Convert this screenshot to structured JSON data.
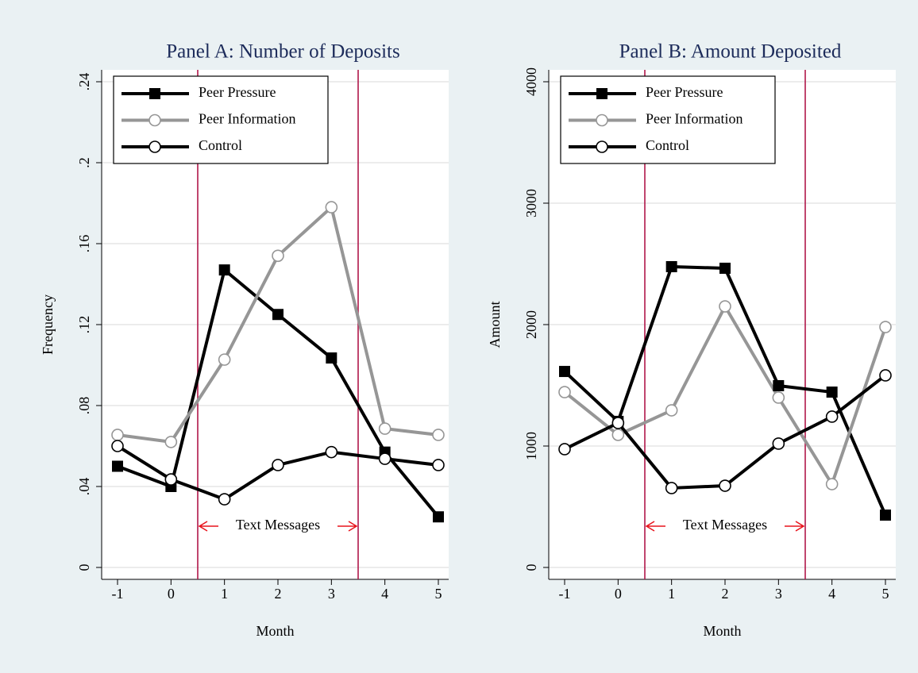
{
  "chart_data": [
    {
      "type": "line",
      "title": "Panel A: Number of Deposits",
      "xlabel": "Month",
      "ylabel": "Frequency",
      "x": [
        -1,
        0,
        1,
        2,
        3,
        4,
        5
      ],
      "series": [
        {
          "name": "Peer Pressure",
          "color": "#000000",
          "marker": "square",
          "values": [
            0.05,
            0.04,
            0.147,
            0.125,
            0.1035,
            0.057,
            0.025
          ]
        },
        {
          "name": "Peer Information",
          "color": "#969696",
          "marker": "circle",
          "values": [
            0.0655,
            0.062,
            0.1027,
            0.154,
            0.178,
            0.0686,
            0.0655
          ]
        },
        {
          "name": "Control",
          "color": "#000000",
          "marker": "circle",
          "values": [
            0.06,
            0.0435,
            0.0337,
            0.0506,
            0.057,
            0.0537,
            0.0506
          ]
        }
      ],
      "xlim": [
        -1,
        5
      ],
      "xticks": [
        -1,
        0,
        1,
        2,
        3,
        4,
        5
      ],
      "ylim": [
        0,
        0.24
      ],
      "yticks": [
        0,
        {
          "value": 0.04,
          "label": ".04"
        },
        {
          "value": 0.08,
          "label": ".08"
        },
        {
          "value": 0.12,
          "label": ".12"
        },
        {
          "value": 0.16,
          "label": ".16"
        },
        {
          "value": 0.2,
          "label": ".2"
        },
        {
          "value": 0.24,
          "label": ".24"
        }
      ],
      "grid": true,
      "vlines": [
        0.5,
        3.5
      ],
      "vline_color": "#b0174a",
      "annotation": "Text Messages",
      "annotation_color": "#e8141c",
      "legend": "upper-left"
    },
    {
      "type": "line",
      "title": "Panel B: Amount Deposited",
      "xlabel": "Month",
      "ylabel": "Amount",
      "x": [
        -1,
        0,
        1,
        2,
        3,
        4,
        5
      ],
      "series": [
        {
          "name": "Peer Pressure",
          "color": "#000000",
          "marker": "square",
          "values": [
            1614,
            1203,
            2477,
            2464,
            1497,
            1444,
            431
          ]
        },
        {
          "name": "Peer Information",
          "color": "#969696",
          "marker": "circle",
          "values": [
            1444,
            1092,
            1294,
            2150,
            1399,
            686,
            1980
          ]
        },
        {
          "name": "Control",
          "color": "#000000",
          "marker": "circle",
          "values": [
            974,
            1190,
            654,
            673,
            1020,
            1242,
            1582
          ]
        }
      ],
      "xlim": [
        -1,
        5
      ],
      "xticks": [
        -1,
        0,
        1,
        2,
        3,
        4,
        5
      ],
      "ylim": [
        0,
        4000
      ],
      "yticks": [
        0,
        1000,
        2000,
        3000,
        4000
      ],
      "grid": true,
      "vlines": [
        0.5,
        3.5
      ],
      "vline_color": "#b0174a",
      "annotation": "Text Messages",
      "annotation_color": "#e8141c",
      "legend": "upper-left"
    }
  ]
}
